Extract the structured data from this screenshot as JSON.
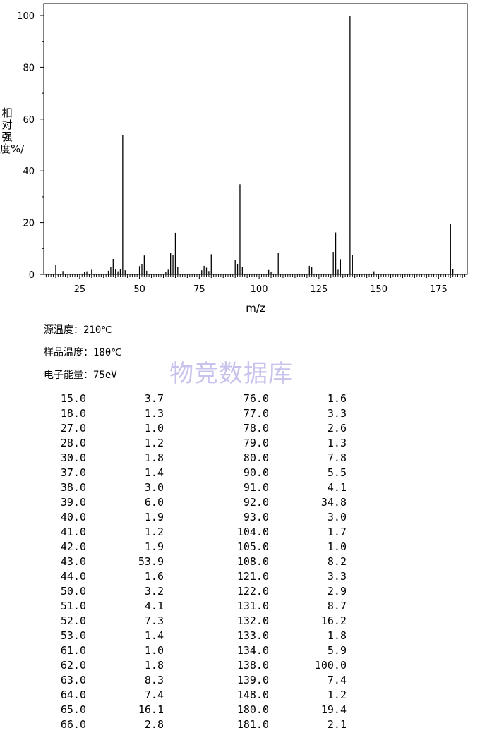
{
  "chart_data": {
    "type": "bar",
    "xlabel": "m/z",
    "ylabel": "相对强度%/",
    "xlim": [
      10,
      187
    ],
    "ylim": [
      0,
      100
    ],
    "xticks": [
      25,
      50,
      75,
      100,
      125,
      150,
      175
    ],
    "yticks": [
      0,
      20,
      40,
      60,
      80,
      100
    ],
    "peaks": [
      [
        15.0,
        3.7
      ],
      [
        18.0,
        1.3
      ],
      [
        27.0,
        1.0
      ],
      [
        28.0,
        1.2
      ],
      [
        30.0,
        1.8
      ],
      [
        37.0,
        1.4
      ],
      [
        38.0,
        3.0
      ],
      [
        39.0,
        6.0
      ],
      [
        40.0,
        1.9
      ],
      [
        41.0,
        1.2
      ],
      [
        42.0,
        1.9
      ],
      [
        43.0,
        53.9
      ],
      [
        44.0,
        1.6
      ],
      [
        50.0,
        3.2
      ],
      [
        51.0,
        4.1
      ],
      [
        52.0,
        7.3
      ],
      [
        53.0,
        1.4
      ],
      [
        61.0,
        1.0
      ],
      [
        62.0,
        1.8
      ],
      [
        63.0,
        8.3
      ],
      [
        64.0,
        7.4
      ],
      [
        65.0,
        16.1
      ],
      [
        66.0,
        2.8
      ],
      [
        76.0,
        1.6
      ],
      [
        77.0,
        3.3
      ],
      [
        78.0,
        2.6
      ],
      [
        79.0,
        1.3
      ],
      [
        80.0,
        7.8
      ],
      [
        90.0,
        5.5
      ],
      [
        91.0,
        4.1
      ],
      [
        92.0,
        34.8
      ],
      [
        93.0,
        3.0
      ],
      [
        104.0,
        1.7
      ],
      [
        105.0,
        1.0
      ],
      [
        108.0,
        8.2
      ],
      [
        121.0,
        3.3
      ],
      [
        122.0,
        2.9
      ],
      [
        131.0,
        8.7
      ],
      [
        132.0,
        16.2
      ],
      [
        133.0,
        1.8
      ],
      [
        134.0,
        5.9
      ],
      [
        138.0,
        100.0
      ],
      [
        139.0,
        7.4
      ],
      [
        148.0,
        1.2
      ],
      [
        180.0,
        19.4
      ],
      [
        181.0,
        2.1
      ]
    ]
  },
  "conditions": {
    "source_temp_label": "源温度：",
    "source_temp_value": "210℃",
    "sample_temp_label": "样品温度：",
    "sample_temp_value": "180℃",
    "electron_energy_label": "电子能量：",
    "electron_energy_value": "75eV"
  },
  "watermark": "物竞数据库",
  "table": {
    "left": [
      [
        "15.0",
        "3.7"
      ],
      [
        "18.0",
        "1.3"
      ],
      [
        "27.0",
        "1.0"
      ],
      [
        "28.0",
        "1.2"
      ],
      [
        "30.0",
        "1.8"
      ],
      [
        "37.0",
        "1.4"
      ],
      [
        "38.0",
        "3.0"
      ],
      [
        "39.0",
        "6.0"
      ],
      [
        "40.0",
        "1.9"
      ],
      [
        "41.0",
        "1.2"
      ],
      [
        "42.0",
        "1.9"
      ],
      [
        "43.0",
        "53.9"
      ],
      [
        "44.0",
        "1.6"
      ],
      [
        "50.0",
        "3.2"
      ],
      [
        "51.0",
        "4.1"
      ],
      [
        "52.0",
        "7.3"
      ],
      [
        "53.0",
        "1.4"
      ],
      [
        "61.0",
        "1.0"
      ],
      [
        "62.0",
        "1.8"
      ],
      [
        "63.0",
        "8.3"
      ],
      [
        "64.0",
        "7.4"
      ],
      [
        "65.0",
        "16.1"
      ],
      [
        "66.0",
        "2.8"
      ]
    ],
    "right": [
      [
        "76.0",
        "1.6"
      ],
      [
        "77.0",
        "3.3"
      ],
      [
        "78.0",
        "2.6"
      ],
      [
        "79.0",
        "1.3"
      ],
      [
        "80.0",
        "7.8"
      ],
      [
        "90.0",
        "5.5"
      ],
      [
        "91.0",
        "4.1"
      ],
      [
        "92.0",
        "34.8"
      ],
      [
        "93.0",
        "3.0"
      ],
      [
        "104.0",
        "1.7"
      ],
      [
        "105.0",
        "1.0"
      ],
      [
        "108.0",
        "8.2"
      ],
      [
        "121.0",
        "3.3"
      ],
      [
        "122.0",
        "2.9"
      ],
      [
        "131.0",
        "8.7"
      ],
      [
        "132.0",
        "16.2"
      ],
      [
        "133.0",
        "1.8"
      ],
      [
        "134.0",
        "5.9"
      ],
      [
        "138.0",
        "100.0"
      ],
      [
        "139.0",
        "7.4"
      ],
      [
        "148.0",
        "1.2"
      ],
      [
        "180.0",
        "19.4"
      ],
      [
        "181.0",
        "2.1"
      ]
    ]
  }
}
